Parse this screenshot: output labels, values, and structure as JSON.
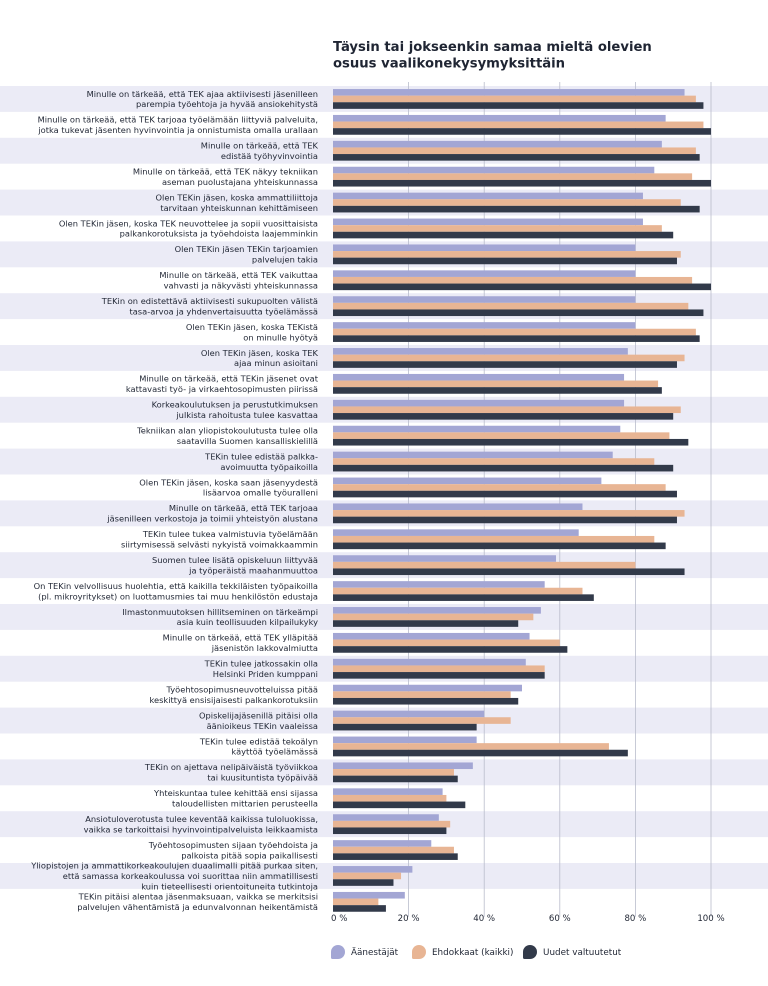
{
  "chart_data": {
    "type": "bar",
    "orientation": "horizontal",
    "title": "Täysin tai jokseenkin samaa mieltä olevien osuus vaalikonekysymyksittäin",
    "title_lines": [
      "Täysin tai jokseenkin samaa mieltä olevien",
      "osuus vaalikonekysymyksittäin"
    ],
    "xlabel": "",
    "ylabel": "",
    "xlim": [
      0,
      100
    ],
    "grid": true,
    "legend_position": "bottom",
    "ticks": [
      {
        "value": 0,
        "label": "0 %"
      },
      {
        "value": 20,
        "label": "20 %"
      },
      {
        "value": 40,
        "label": "40 %"
      },
      {
        "value": 60,
        "label": "60 %"
      },
      {
        "value": 80,
        "label": "80 %"
      },
      {
        "value": 100,
        "label": "100 %"
      }
    ],
    "categories": [
      [
        "Minulle on tärkeää, että TEK ajaa aktiivisesti jäsenilleen",
        "parempia työehtoja ja hyvää ansiokehitystä"
      ],
      [
        "Minulle on tärkeää, että TEK tarjoaa työelämään liittyviä palveluita,",
        "jotka tukevat jäsenten hyvinvointia ja onnistumista omalla urallaan"
      ],
      [
        "Minulle on tärkeää, että TEK",
        "edistää työhyvinvointia"
      ],
      [
        "Minulle on tärkeää, että TEK näkyy tekniikan",
        "aseman puolustajana yhteiskunnassa"
      ],
      [
        "Olen TEKin jäsen, koska ammattiliittoja",
        "tarvitaan yhteiskunnan kehittämiseen"
      ],
      [
        "Olen TEKin jäsen, koska TEK neuvottelee ja sopii vuosittaisista",
        "palkankorotuksista ja työehdoista laajemminkin"
      ],
      [
        "Olen TEKin jäsen TEKin tarjoamien",
        "palvelujen takia"
      ],
      [
        "Minulle on tärkeää, että TEK vaikuttaa",
        "vahvasti ja näkyvästi yhteiskunnassa"
      ],
      [
        "TEKin on edistettävä aktiivisesti sukupuolten välistä",
        "tasa-arvoa ja yhdenvertaisuutta työelämässä"
      ],
      [
        "Olen TEKin jäsen, koska TEKistä",
        "on minulle hyötyä"
      ],
      [
        "Olen TEKin jäsen, koska TEK",
        "ajaa minun asioitani"
      ],
      [
        "Minulle on tärkeää, että TEKin jäsenet ovat",
        "kattavasti työ- ja virkaehtosopimusten piirissä"
      ],
      [
        "Korkeakoulutuksen ja perustutkimuksen",
        "julkista rahoitusta tulee kasvattaa"
      ],
      [
        "Tekniikan alan yliopistokoulutusta tulee olla",
        "saatavilla Suomen kansalliskielillä"
      ],
      [
        "TEKin tulee edistää palkka-",
        "avoimuutta työpaikoilla"
      ],
      [
        "Olen TEKin jäsen, koska saan jäsenyydestä",
        "lisäarvoa omalle työuralleni"
      ],
      [
        "Minulle on tärkeää, että TEK tarjoaa",
        "jäsenilleen verkostoja ja toimii yhteistyön alustana"
      ],
      [
        "TEKin tulee tukea valmistuvia työelämään",
        "siirtymisessä selvästi nykyistä voimakkaammin"
      ],
      [
        "Suomen tulee lisätä opiskeluun liittyvää",
        "ja työperäistä maahanmuuttoa"
      ],
      [
        "On TEKin velvollisuus huolehtia, että kaikilla tekkiläisten työpaikoilla",
        "(pl. mikroyritykset) on luottamusmies tai muu henkilöstön edustaja"
      ],
      [
        "Ilmastonmuutoksen hillitseminen on tärkeämpi",
        "asia kuin teollisuuden kilpailukyky"
      ],
      [
        "Minulle on tärkeää, että TEK ylläpitää",
        "jäsenistön lakkovalmiutta"
      ],
      [
        "TEKin tulee jatkossakin olla",
        "Helsinki Priden kumppani"
      ],
      [
        "Työehtosopimusneuvotteluissa pitää",
        "keskittyä ensisijaisesti palkankorotuksiin"
      ],
      [
        "Opiskelijajäsenillä pitäisi olla",
        "äänioikeus TEKin vaaleissa"
      ],
      [
        "TEKin tulee edistää tekoälyn",
        "käyttöä työelämässä"
      ],
      [
        "TEKin on ajettava nelipäiväistä työviikkoa",
        "tai kuusituntista työpäivää"
      ],
      [
        "Yhteiskuntaa tulee kehittää ensi sijassa",
        "taloudellisten mittarien perusteella"
      ],
      [
        "Ansiotuloverotusta tulee keventää kaikissa tuloluokissa,",
        "vaikka se tarkoittaisi hyvinvointipalveluista leikkaamista"
      ],
      [
        "Työehtosopimusten sijaan työehdoista ja",
        "palkoista pitää sopia paikallisesti"
      ],
      [
        "Yliopistojen ja ammattikorkeakoulujen duaalimalli pitää purkaa siten,",
        "että samassa korkeakoulussa voi suorittaa niin ammatillisesti",
        "kuin tieteellisesti orientoituneita tutkintoja"
      ],
      [
        "TEKin pitäisi alentaa jäsenmaksuaan, vaikka se merkitsisi",
        "palvelujen vähentämistä ja edunvalvonnan heikentämistä"
      ]
    ],
    "series": [
      {
        "name": "Äänestäjät",
        "color": "#a3a6d4",
        "values": [
          93,
          88,
          87,
          85,
          82,
          82,
          80,
          80,
          80,
          80,
          78,
          77,
          77,
          76,
          74,
          71,
          66,
          65,
          59,
          56,
          55,
          52,
          51,
          50,
          40,
          38,
          37,
          29,
          28,
          26,
          21,
          19
        ]
      },
      {
        "name": "Ehdokkaat (kaikki)",
        "color": "#e8b594",
        "values": [
          96,
          98,
          96,
          95,
          92,
          87,
          92,
          95,
          94,
          96,
          93,
          86,
          92,
          89,
          85,
          88,
          93,
          85,
          80,
          66,
          53,
          60,
          56,
          47,
          47,
          73,
          32,
          30,
          31,
          32,
          18,
          12
        ]
      },
      {
        "name": "Uudet valtuutetut",
        "color": "#323a4a",
        "values": [
          98,
          100,
          97,
          100,
          97,
          90,
          91,
          100,
          98,
          97,
          91,
          87,
          90,
          94,
          90,
          91,
          91,
          88,
          93,
          69,
          49,
          62,
          56,
          49,
          38,
          78,
          33,
          35,
          30,
          33,
          16,
          14
        ]
      }
    ]
  }
}
